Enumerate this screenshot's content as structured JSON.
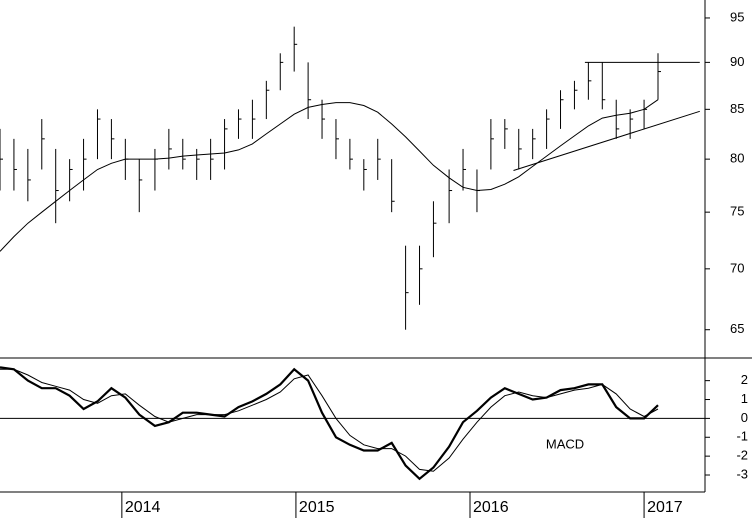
{
  "chart_data": [
    {
      "type": "ohlc",
      "log_scale": true,
      "xlim": [
        2013.3,
        2017.35
      ],
      "ylim": [
        62.8,
        97.1
      ],
      "yticks": [
        65,
        70,
        75,
        80,
        85,
        90,
        95
      ],
      "color": "#000000",
      "x": [
        2013.3,
        2013.38,
        2013.46,
        2013.54,
        2013.62,
        2013.7,
        2013.78,
        2013.86,
        2013.94,
        2014.02,
        2014.1,
        2014.19,
        2014.27,
        2014.35,
        2014.43,
        2014.51,
        2014.59,
        2014.67,
        2014.75,
        2014.83,
        2014.91,
        2014.99,
        2015.07,
        2015.15,
        2015.23,
        2015.31,
        2015.39,
        2015.47,
        2015.55,
        2015.63,
        2015.71,
        2015.79,
        2015.88,
        2015.96,
        2016.04,
        2016.12,
        2016.2,
        2016.28,
        2016.36,
        2016.44,
        2016.52,
        2016.6,
        2016.68,
        2016.76,
        2016.84,
        2016.92,
        2017.0,
        2017.08
      ],
      "high": [
        83,
        82,
        81,
        84,
        81,
        80,
        82,
        85,
        84,
        82,
        80,
        81,
        83,
        82,
        81,
        82,
        84,
        85,
        86,
        88,
        91,
        94,
        90,
        86,
        84,
        82,
        80,
        82,
        80,
        72,
        72,
        76,
        79,
        81,
        79,
        84,
        84,
        83,
        83,
        85,
        87,
        88,
        90,
        90,
        86,
        85,
        86,
        91
      ],
      "low": [
        77,
        77,
        76,
        79,
        74,
        76,
        77,
        80,
        80,
        78,
        75,
        77,
        79,
        79,
        78,
        78,
        79,
        82,
        82,
        84,
        87,
        89,
        84,
        82,
        80,
        79,
        77,
        78,
        75,
        65,
        67,
        71,
        74,
        77,
        75,
        79,
        81,
        79,
        80,
        81,
        83,
        85,
        86,
        85,
        82,
        82,
        83,
        86
      ],
      "close": [
        80,
        79,
        78,
        82,
        77,
        79,
        80,
        84,
        82,
        80,
        78,
        80,
        81,
        80,
        80,
        80,
        83,
        84,
        84,
        87,
        90,
        92,
        86,
        84,
        82,
        80,
        79,
        80,
        76,
        68,
        70,
        74,
        77,
        79,
        77,
        82,
        83,
        81,
        82,
        84,
        86,
        87,
        88,
        86,
        83,
        84,
        85,
        89
      ],
      "moving_average": [
        71.5,
        72.8,
        74.0,
        75.0,
        76.0,
        77.0,
        78.0,
        79.0,
        79.6,
        80.0,
        80.0,
        80.0,
        80.1,
        80.3,
        80.4,
        80.5,
        80.6,
        80.9,
        81.5,
        82.5,
        83.5,
        84.5,
        85.2,
        85.5,
        85.7,
        85.7,
        85.4,
        84.7,
        83.5,
        82.2,
        80.8,
        79.4,
        78.2,
        77.3,
        77.0,
        77.1,
        77.6,
        78.3,
        79.3,
        80.3,
        81.3,
        82.3,
        83.3,
        84.1,
        84.4,
        84.6,
        85.0,
        86.0
      ],
      "trendlines": [
        {
          "x": [
            2016.66,
            2017.32
          ],
          "values": [
            90,
            90
          ]
        },
        {
          "x": [
            2016.25,
            2017.32
          ],
          "values": [
            78.9,
            84.8
          ]
        }
      ]
    },
    {
      "type": "line",
      "annotation": "MACD",
      "xlim": [
        2013.3,
        2017.35
      ],
      "ylim": [
        -3.9,
        3.2
      ],
      "yticks": [
        -3,
        -2,
        -1,
        0,
        1,
        2
      ],
      "xticks": [
        2014,
        2015,
        2016,
        2017
      ],
      "zero_line": true,
      "x": [
        2013.3,
        2013.38,
        2013.46,
        2013.54,
        2013.62,
        2013.7,
        2013.78,
        2013.86,
        2013.94,
        2014.02,
        2014.1,
        2014.19,
        2014.27,
        2014.35,
        2014.43,
        2014.51,
        2014.59,
        2014.67,
        2014.75,
        2014.83,
        2014.91,
        2014.99,
        2015.07,
        2015.15,
        2015.23,
        2015.31,
        2015.39,
        2015.47,
        2015.55,
        2015.63,
        2015.71,
        2015.79,
        2015.88,
        2015.96,
        2016.04,
        2016.12,
        2016.2,
        2016.28,
        2016.36,
        2016.44,
        2016.52,
        2016.6,
        2016.68,
        2016.76,
        2016.84,
        2016.92,
        2017.0,
        2017.08
      ],
      "series": [
        {
          "color": "#000000",
          "width": 2.2,
          "values": [
            2.7,
            2.6,
            2.0,
            1.6,
            1.6,
            1.2,
            0.5,
            0.9,
            1.6,
            1.1,
            0.2,
            -0.4,
            -0.2,
            0.3,
            0.3,
            0.2,
            0.1,
            0.6,
            0.9,
            1.3,
            1.8,
            2.6,
            2.0,
            0.3,
            -1.0,
            -1.4,
            -1.7,
            -1.7,
            -1.3,
            -2.5,
            -3.2,
            -2.6,
            -1.5,
            -0.2,
            0.4,
            1.1,
            1.6,
            1.3,
            1.0,
            1.1,
            1.5,
            1.6,
            1.8,
            1.8,
            0.6,
            0.0,
            0.0,
            0.7
          ]
        },
        {
          "color": "#000000",
          "width": 1,
          "values": [
            2.6,
            2.6,
            2.3,
            1.9,
            1.7,
            1.5,
            1.0,
            0.8,
            1.2,
            1.3,
            0.7,
            0.1,
            -0.2,
            0.0,
            0.2,
            0.2,
            0.2,
            0.4,
            0.7,
            1.0,
            1.4,
            2.1,
            2.3,
            1.2,
            0.0,
            -0.9,
            -1.4,
            -1.6,
            -1.6,
            -2.0,
            -2.7,
            -2.8,
            -2.1,
            -1.1,
            -0.2,
            0.6,
            1.2,
            1.4,
            1.2,
            1.1,
            1.3,
            1.5,
            1.6,
            1.8,
            1.3,
            0.5,
            0.1,
            0.5
          ]
        }
      ]
    }
  ]
}
